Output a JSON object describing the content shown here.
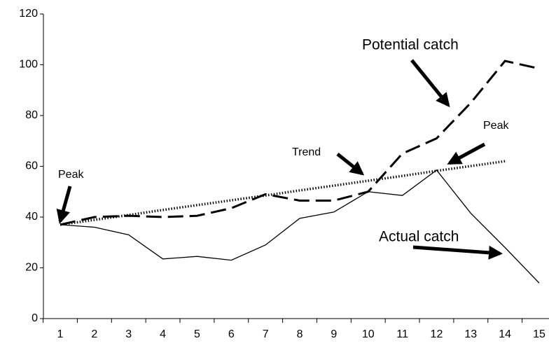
{
  "chart_data": {
    "type": "line",
    "categories": [
      1,
      2,
      3,
      4,
      5,
      6,
      7,
      8,
      9,
      10,
      11,
      12,
      13,
      14,
      15
    ],
    "ylim": [
      0,
      120
    ],
    "yticks": [
      0,
      20,
      40,
      60,
      80,
      100,
      120
    ],
    "grid": false,
    "series": [
      {
        "name": "Actual catch",
        "color": "#000000",
        "style": "solid",
        "values": [
          37,
          36,
          33,
          23.5,
          24.5,
          23,
          29,
          39.5,
          42,
          50,
          48.5,
          58.5,
          41.5,
          28,
          14
        ]
      },
      {
        "name": "Potential catch",
        "color": "#000000",
        "style": "dashed",
        "values": [
          37,
          40,
          40.5,
          40,
          40.5,
          43.5,
          49,
          46.5,
          46.5,
          50,
          65,
          71,
          85,
          101.5,
          98.5
        ]
      },
      {
        "name": "Trend",
        "color": "#000000",
        "style": "dotted",
        "values": [
          37,
          38.9,
          40.8,
          42.8,
          44.7,
          46.6,
          48.5,
          50.5,
          52.4,
          54.3,
          56.2,
          58.2,
          60.1,
          62,
          null
        ]
      }
    ],
    "annotations": [
      "Peak",
      "Peak"
    ]
  }
}
